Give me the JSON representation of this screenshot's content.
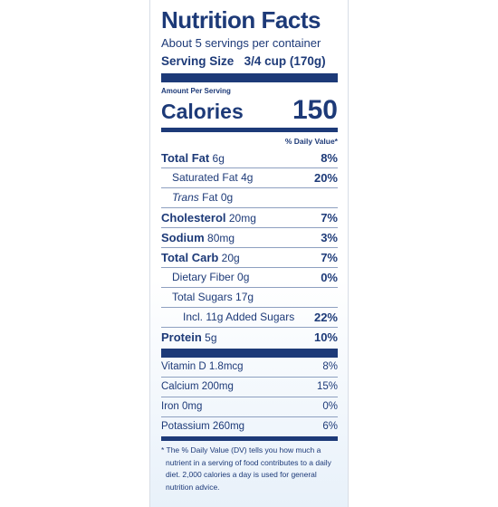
{
  "title": "Nutrition Facts",
  "servings": "About 5 servings per container",
  "serving_size": {
    "label": "Serving Size",
    "value": "3/4 cup (170g)"
  },
  "amount_per_serving": "Amount Per Serving",
  "calories": {
    "label": "Calories",
    "value": "150"
  },
  "daily_value_header": "% Daily Value*",
  "nutrients": [
    {
      "label": "Total Fat",
      "amount": "6g",
      "dv": "8%"
    },
    {
      "label": "Saturated Fat",
      "amount": "4g",
      "dv": "20%"
    },
    {
      "label_italic": "Trans",
      "label": "Fat",
      "amount": "0g"
    },
    {
      "label": "Cholesterol",
      "amount": "20mg",
      "dv": "7%"
    },
    {
      "label": "Sodium",
      "amount": "80mg",
      "dv": "3%"
    },
    {
      "label": "Total Carb",
      "amount": "20g",
      "dv": "7%"
    },
    {
      "label": "Dietary Fiber",
      "amount": "0g",
      "dv": "0%"
    },
    {
      "label": "Total Sugars",
      "amount": "17g"
    },
    {
      "label": "Incl. 11g Added Sugars",
      "dv": "22%"
    },
    {
      "label": "Protein",
      "amount": "5g",
      "dv": "10%"
    }
  ],
  "vitamins": [
    {
      "label": "Vitamin D",
      "amount": "1.8mcg",
      "dv": "8%"
    },
    {
      "label": "Calcium",
      "amount": "200mg",
      "dv": "15%"
    },
    {
      "label": "Iron",
      "amount": "0mg",
      "dv": "0%"
    },
    {
      "label": "Potassium",
      "amount": "260mg",
      "dv": "6%"
    }
  ],
  "footnote": "* The % Daily Value (DV) tells you how much a nutrient in a serving of food contributes to a daily diet. 2,000 calories a day is used for general nutrition advice."
}
